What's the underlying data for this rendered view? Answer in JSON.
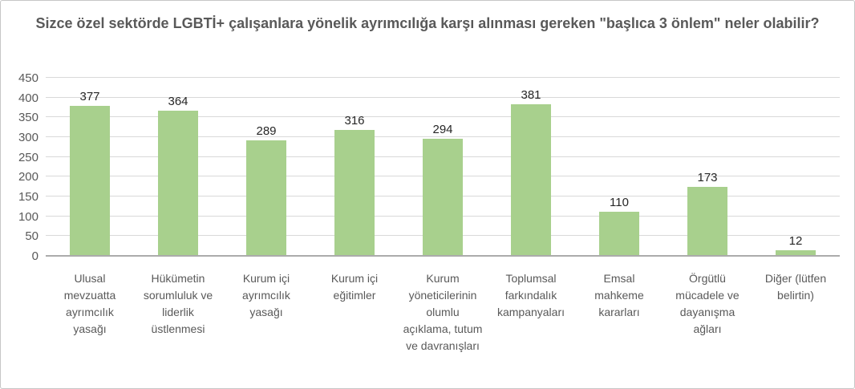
{
  "chart_data": {
    "type": "bar",
    "title": "Sizce özel sektörde LGBTİ+ çalışanlara yönelik ayrımcılığa karşı alınması gereken \"başlıca 3 önlem\" neler olabilir?",
    "categories": [
      "Ulusal mevzuatta ayrımcılık yasağı",
      "Hükümetin sorumluluk ve liderlik üstlenmesi",
      "Kurum içi ayrımcılık yasağı",
      "Kurum içi eğitimler",
      "Kurum yöneticilerinin olumlu açıklama, tutum ve davranışları",
      "Toplumsal farkındalık kampanyaları",
      "Emsal mahkeme kararları",
      "Örgütlü mücadele ve dayanışma ağları",
      "Diğer (lütfen belirtin)"
    ],
    "values": [
      377,
      364,
      289,
      316,
      294,
      381,
      110,
      173,
      12
    ],
    "xlabel": "",
    "ylabel": "",
    "ylim": [
      0,
      450
    ],
    "ytick_step": 50,
    "grid": true,
    "legend_position": "none",
    "data_labels": true,
    "colors": {
      "bar": "#a8d08d",
      "gridline": "#d9d9d9",
      "axis_line": "#ababab",
      "title_text": "#595959",
      "tick_text": "#595959",
      "value_text": "#262626"
    }
  }
}
